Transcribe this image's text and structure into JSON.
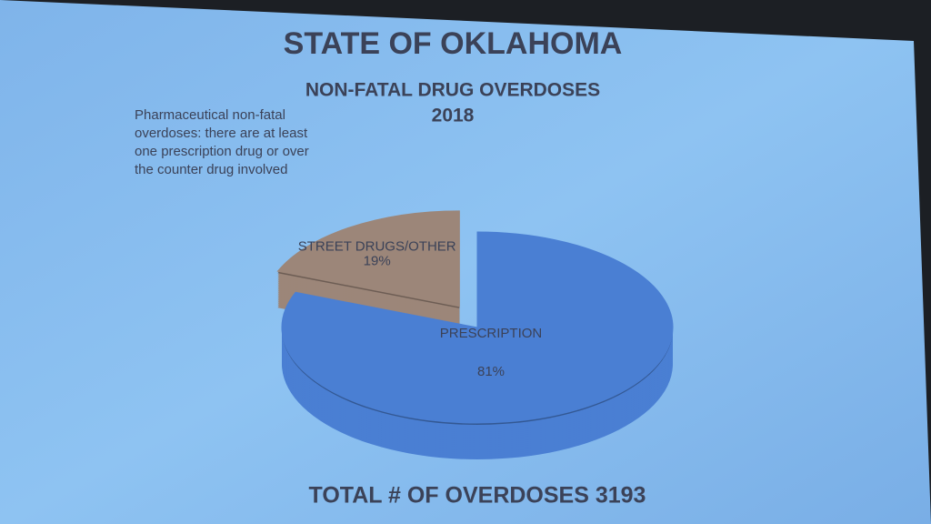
{
  "chart_data": {
    "type": "pie",
    "title": "STATE OF OKLAHOMA",
    "subtitle": "NON-FATAL DRUG OVERDOSES",
    "year": "2018",
    "annotation": [
      "Pharmaceutical non-fatal",
      "overdoses: there are at least",
      "one prescription drug or over",
      "the counter drug involved"
    ],
    "categories": [
      "PRESCRIPTION",
      "STREET DRUGS/OTHER"
    ],
    "values": [
      81,
      19
    ],
    "value_labels": [
      "81%",
      "19%"
    ],
    "colors": [
      "#4a7fd3",
      "#9c8679"
    ],
    "footer": "TOTAL # OF OVERDOSES 3193"
  }
}
